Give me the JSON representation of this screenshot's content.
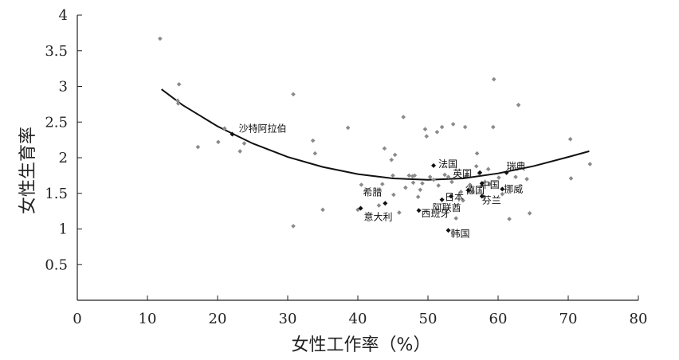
{
  "chart_data": {
    "type": "scatter",
    "xlabel": "女性工作率（%）",
    "ylabel": "女性生育率",
    "xlim": [
      0,
      80
    ],
    "ylim": [
      0,
      4
    ],
    "xticks": [
      0,
      10,
      20,
      30,
      40,
      50,
      60,
      70,
      80
    ],
    "yticks": [
      0.5,
      1,
      1.5,
      2,
      2.5,
      3,
      3.5,
      4
    ],
    "ytick_labels": [
      "0.5",
      "1",
      "1.5",
      "2",
      "2.5",
      "3",
      "3.5",
      "4"
    ],
    "grid": false,
    "legend": "none",
    "colors": {
      "point": "#8a8a8a",
      "highlight": "#111111",
      "curve": "#111111"
    },
    "points": [
      [
        11.8,
        3.67
      ],
      [
        14.5,
        3.03
      ],
      [
        14.3,
        2.8
      ],
      [
        14.4,
        2.76
      ],
      [
        17.2,
        2.15
      ],
      [
        20.1,
        2.22
      ],
      [
        21.0,
        2.41
      ],
      [
        23.2,
        2.09
      ],
      [
        23.8,
        2.2
      ],
      [
        30.8,
        2.89
      ],
      [
        30.8,
        1.04
      ],
      [
        33.6,
        2.24
      ],
      [
        33.9,
        2.06
      ],
      [
        35.0,
        1.27
      ],
      [
        38.6,
        2.42
      ],
      [
        40.0,
        1.27
      ],
      [
        40.5,
        1.62
      ],
      [
        43.0,
        1.33
      ],
      [
        43.5,
        1.63
      ],
      [
        43.8,
        2.13
      ],
      [
        44.8,
        1.97
      ],
      [
        45.3,
        2.04
      ],
      [
        45.0,
        1.75
      ],
      [
        45.1,
        1.48
      ],
      [
        45.9,
        1.23
      ],
      [
        46.5,
        2.57
      ],
      [
        46.8,
        1.58
      ],
      [
        47.3,
        1.75
      ],
      [
        47.8,
        1.74
      ],
      [
        47.9,
        1.65
      ],
      [
        48.1,
        1.75
      ],
      [
        48.6,
        1.45
      ],
      [
        48.9,
        1.55
      ],
      [
        49.2,
        1.64
      ],
      [
        49.6,
        2.4
      ],
      [
        49.8,
        2.3
      ],
      [
        50.3,
        1.73
      ],
      [
        50.8,
        1.69
      ],
      [
        51.5,
        1.61
      ],
      [
        51.3,
        2.36
      ],
      [
        52.0,
        2.43
      ],
      [
        52.4,
        1.76
      ],
      [
        52.9,
        1.73
      ],
      [
        53.4,
        1.66
      ],
      [
        53.6,
        2.47
      ],
      [
        54.0,
        1.15
      ],
      [
        54.7,
        1.52
      ],
      [
        55.0,
        1.4
      ],
      [
        55.3,
        2.43
      ],
      [
        55.5,
        1.75
      ],
      [
        56.0,
        1.62
      ],
      [
        56.4,
        1.52
      ],
      [
        56.9,
        1.88
      ],
      [
        57.0,
        2.06
      ],
      [
        57.3,
        1.78
      ],
      [
        57.6,
        1.6
      ],
      [
        58.0,
        1.45
      ],
      [
        58.6,
        1.84
      ],
      [
        58.8,
        1.63
      ],
      [
        59.3,
        2.43
      ],
      [
        59.4,
        3.1
      ],
      [
        60.1,
        1.72
      ],
      [
        60.6,
        1.49
      ],
      [
        61.6,
        1.14
      ],
      [
        62.5,
        1.73
      ],
      [
        62.9,
        2.74
      ],
      [
        64.1,
        1.7
      ],
      [
        64.5,
        1.22
      ],
      [
        70.3,
        2.26
      ],
      [
        70.4,
        1.71
      ],
      [
        73.1,
        1.91
      ]
    ],
    "labeled_points": [
      {
        "name": "沙特阿拉伯",
        "x": 22.1,
        "y": 2.33
      },
      {
        "name": "法国",
        "x": 50.8,
        "y": 1.89
      },
      {
        "name": "英国",
        "x": 57.4,
        "y": 1.79
      },
      {
        "name": "瑞典",
        "x": 61.2,
        "y": 1.79
      },
      {
        "name": "中国",
        "x": 57.7,
        "y": 1.64
      },
      {
        "name": "希腊",
        "x": 43.9,
        "y": 1.36
      },
      {
        "name": "日本",
        "x": 53.3,
        "y": 1.46
      },
      {
        "name": "德国",
        "x": 55.8,
        "y": 1.54
      },
      {
        "name": "挪威",
        "x": 60.6,
        "y": 1.56
      },
      {
        "name": "芬兰",
        "x": 57.7,
        "y": 1.46
      },
      {
        "name": "阿联酋",
        "x": 52.0,
        "y": 1.41
      },
      {
        "name": "意大利",
        "x": 40.4,
        "y": 1.29
      },
      {
        "name": "西班牙",
        "x": 48.7,
        "y": 1.26
      },
      {
        "name": "韩国",
        "x": 52.9,
        "y": 0.98
      }
    ],
    "trend": [
      [
        12,
        2.96
      ],
      [
        15,
        2.74
      ],
      [
        20,
        2.44
      ],
      [
        25,
        2.2
      ],
      [
        30,
        2.01
      ],
      [
        35,
        1.87
      ],
      [
        40,
        1.77
      ],
      [
        45,
        1.71
      ],
      [
        50,
        1.69
      ],
      [
        55,
        1.71
      ],
      [
        60,
        1.78
      ],
      [
        65,
        1.88
      ],
      [
        70,
        2.01
      ],
      [
        73,
        2.09
      ]
    ]
  }
}
